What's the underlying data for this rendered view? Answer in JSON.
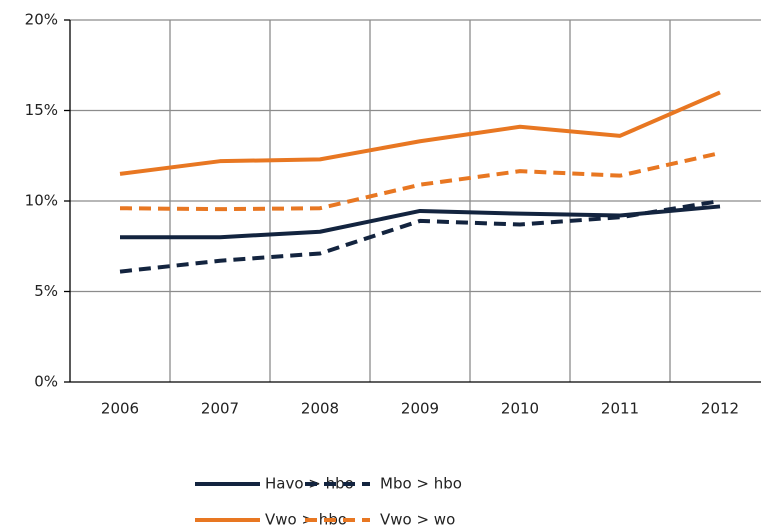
{
  "chart_data": {
    "type": "line",
    "categories": [
      "2006",
      "2007",
      "2008",
      "2009",
      "2010",
      "2011",
      "2012"
    ],
    "series": [
      {
        "name": "Havo > hbo",
        "color": "#13243f",
        "dash": "solid",
        "values": [
          8.0,
          8.0,
          8.3,
          9.45,
          9.3,
          9.2,
          9.7
        ]
      },
      {
        "name": "Mbo > hbo",
        "color": "#13243f",
        "dash": "dashed",
        "values": [
          6.1,
          6.7,
          7.1,
          8.9,
          8.7,
          9.1,
          10.0
        ]
      },
      {
        "name": "Vwo > hbo",
        "color": "#e87722",
        "dash": "solid",
        "values": [
          11.5,
          12.2,
          12.3,
          13.3,
          14.1,
          13.6,
          16.0
        ]
      },
      {
        "name": "Vwo > wo",
        "color": "#e87722",
        "dash": "dashed",
        "values": [
          9.6,
          9.55,
          9.6,
          10.9,
          11.65,
          11.4,
          12.65
        ]
      }
    ],
    "ylim": [
      0,
      20
    ],
    "yticks": [
      {
        "value": 0,
        "label": "0%"
      },
      {
        "value": 5,
        "label": "5%"
      },
      {
        "value": 10,
        "label": "10%"
      },
      {
        "value": 15,
        "label": "15%"
      },
      {
        "value": 20,
        "label": "20%"
      }
    ],
    "grid": true,
    "legend": "bottom"
  }
}
